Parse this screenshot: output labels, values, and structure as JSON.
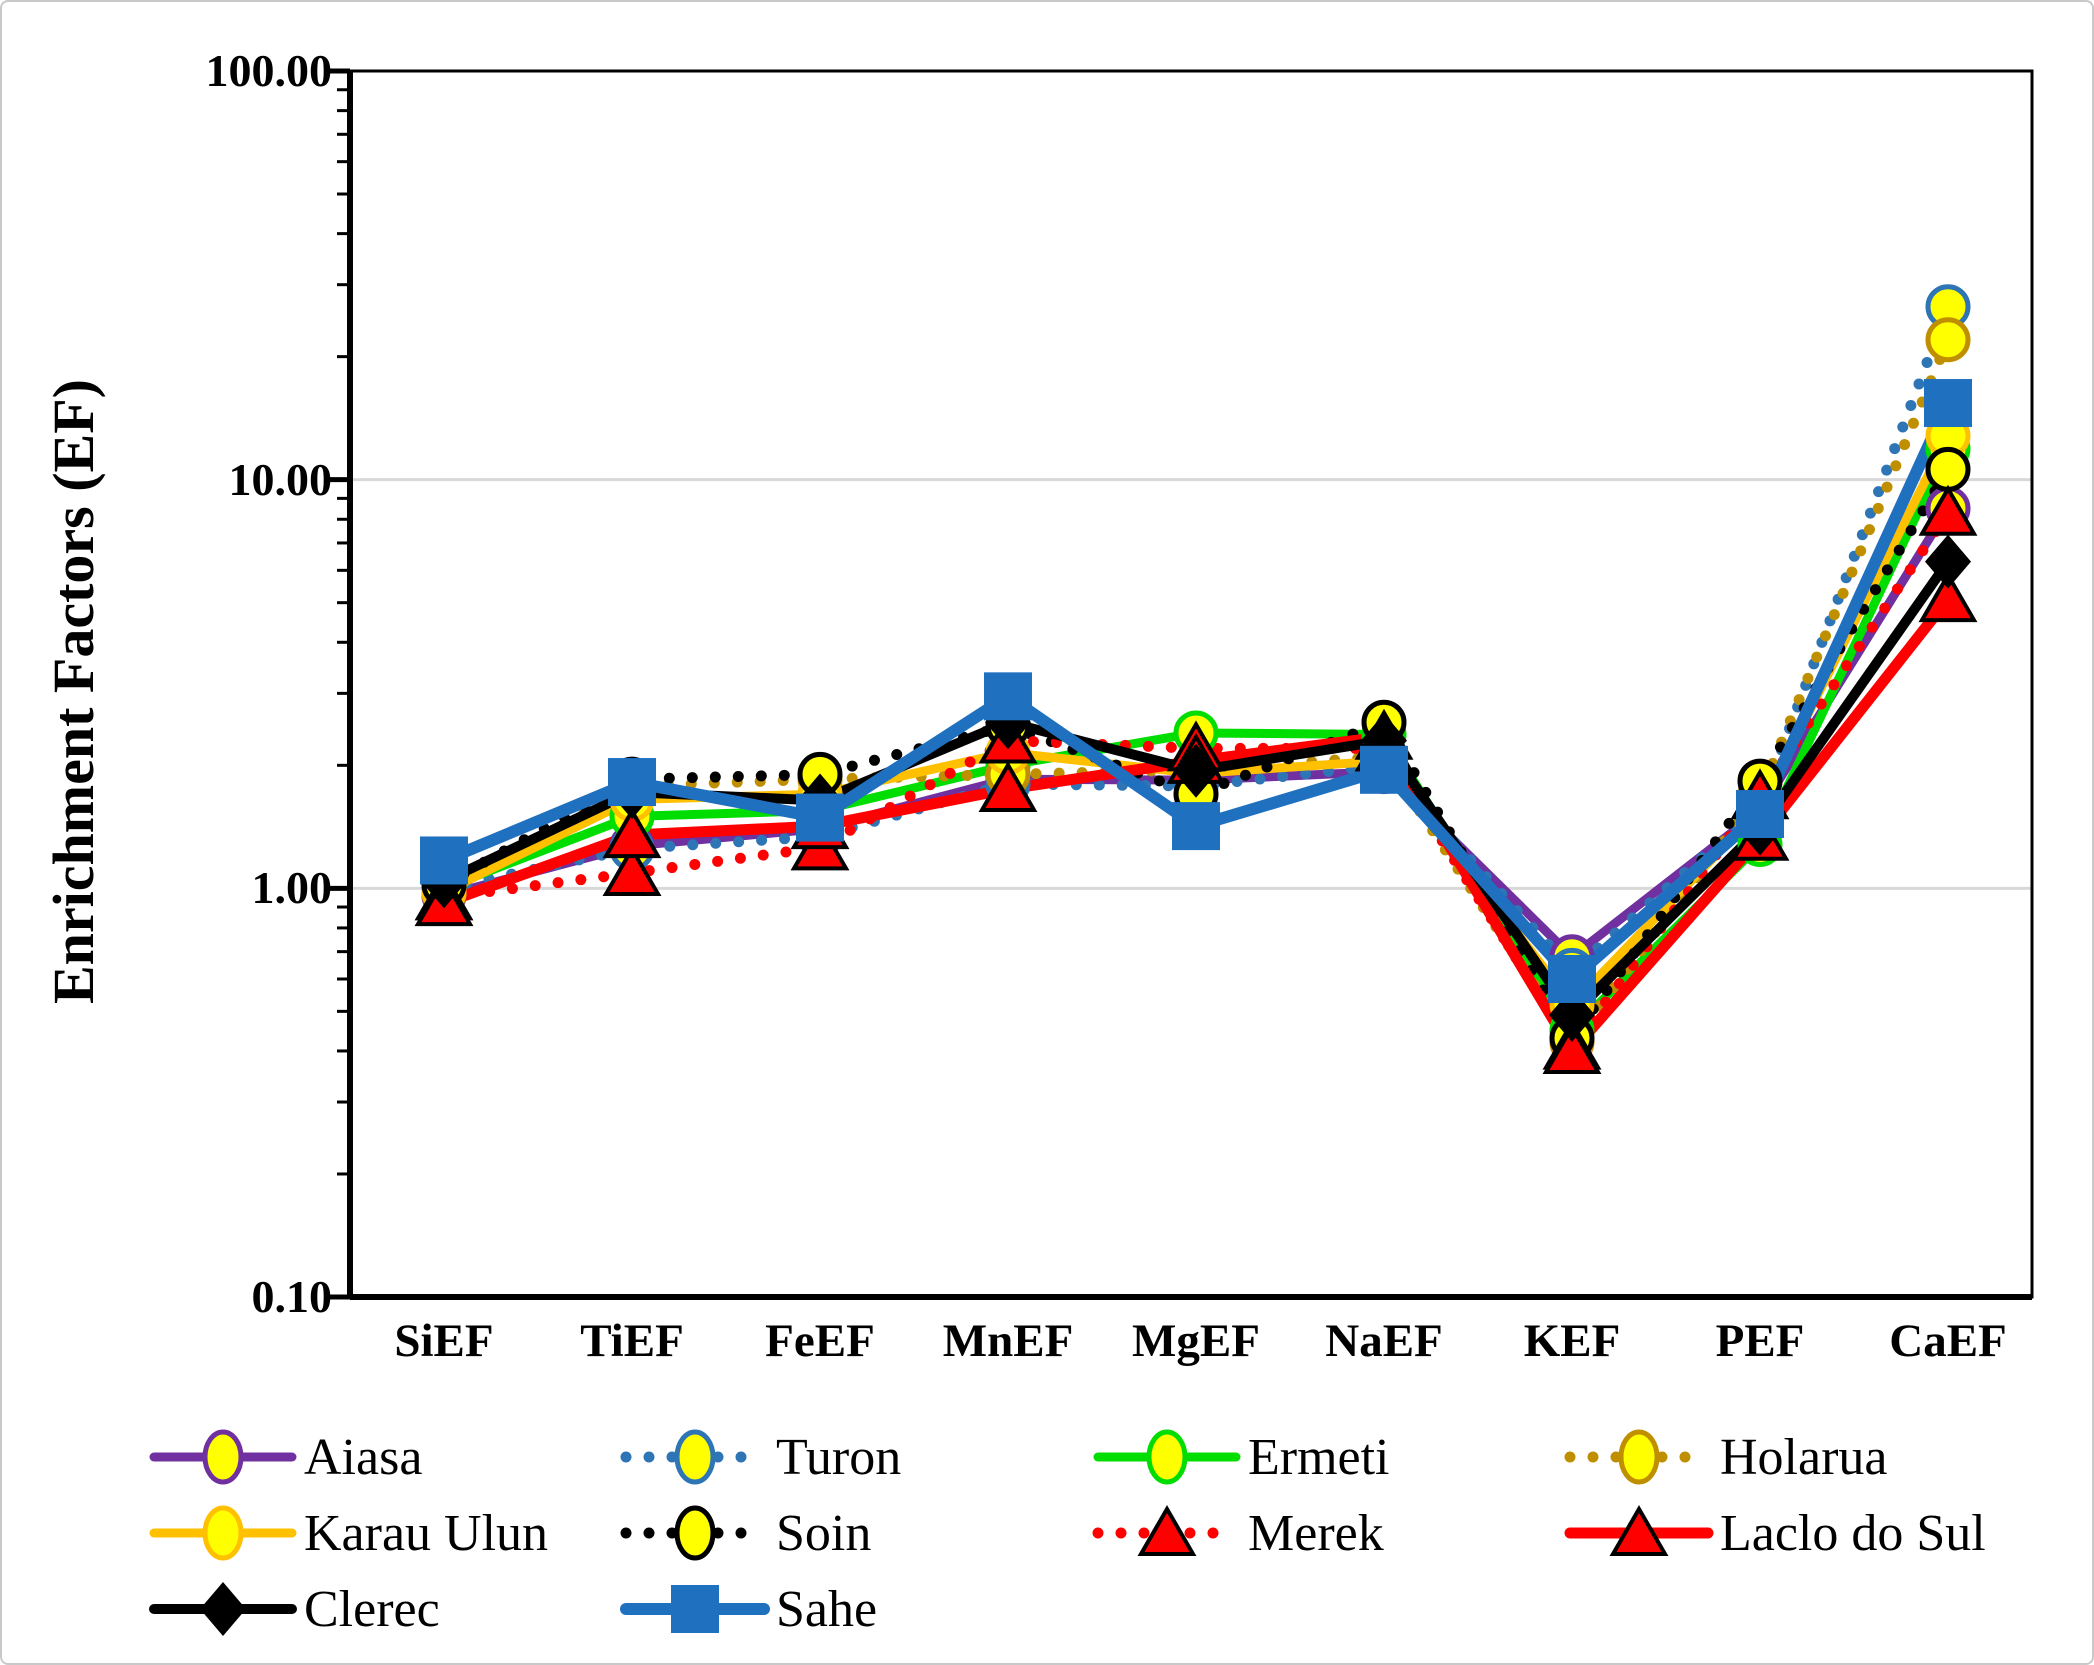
{
  "figure_title": "",
  "y_axis": {
    "title": "Enrichment Factors (EF)",
    "scale": "log",
    "min": 0.1,
    "max": 100,
    "tick_labels": [
      "100.00",
      "10.00",
      "1.00",
      "0.10"
    ],
    "gridlines_at": [
      10,
      1
    ]
  },
  "x_axis": {
    "categories": [
      "SiEF",
      "TiEF",
      "FeEF",
      "MnEF",
      "MgEF",
      "NaEF",
      "KEF",
      "PEF",
      "CaEF"
    ]
  },
  "chart_data": {
    "type": "line",
    "title": "",
    "xlabel": "",
    "ylabel": "Enrichment Factors (EF)",
    "y_scale": "log",
    "ylim": [
      0.1,
      100
    ],
    "y_ticks": [
      "100.00",
      "10.00",
      "1.00",
      "0.10"
    ],
    "grid": "horizontal gridlines at 1.00 and 10.00, light gray",
    "legend_position": "bottom",
    "categories": [
      "SiEF",
      "TiEF",
      "FeEF",
      "MnEF",
      "MgEF",
      "NaEF",
      "KEF",
      "PEF",
      "CaEF"
    ],
    "series": [
      {
        "name": "Aiasa",
        "color": "#7030A0",
        "line": "solid",
        "line_width": 9,
        "marker": "circle",
        "marker_fill": "#FFFF00",
        "values": [
          0.96,
          1.27,
          1.4,
          1.85,
          1.84,
          1.93,
          0.68,
          1.55,
          8.5
        ]
      },
      {
        "name": "Turon",
        "color": "#2E75B6",
        "line": "dotted",
        "line_width": 11,
        "marker": "circle",
        "marker_fill": "#FFFF00",
        "values": [
          1.0,
          1.25,
          1.34,
          1.8,
          1.78,
          2.0,
          0.63,
          1.58,
          26.5
        ]
      },
      {
        "name": "Ermeti",
        "color": "#00DD00",
        "line": "solid",
        "line_width": 9,
        "marker": "circle",
        "marker_fill": "#FFFF00",
        "values": [
          1.0,
          1.5,
          1.55,
          2.0,
          2.4,
          2.38,
          0.45,
          1.28,
          11.9
        ]
      },
      {
        "name": "Holarua",
        "color": "#BF8F00",
        "line": "dotted",
        "line_width": 11,
        "marker": "circle",
        "marker_fill": "#FFFF00",
        "values": [
          0.97,
          1.78,
          1.85,
          1.9,
          1.95,
          2.1,
          0.42,
          1.7,
          22.0
        ]
      },
      {
        "name": "Karau Ulun",
        "color": "#FFC000",
        "line": "solid",
        "line_width": 9,
        "marker": "circle",
        "marker_fill": "#FFFF00",
        "values": [
          0.98,
          1.65,
          1.7,
          2.15,
          1.91,
          2.05,
          0.52,
          1.56,
          12.8
        ]
      },
      {
        "name": "Soin",
        "color": "#000000",
        "line": "dotted",
        "line_width": 11,
        "marker": "circle",
        "marker_fill": "#FFFF00",
        "values": [
          1.02,
          1.85,
          1.9,
          2.5,
          1.7,
          2.55,
          0.43,
          1.83,
          10.6
        ]
      },
      {
        "name": "Merek",
        "color": "#FF0000",
        "line": "dotted",
        "line_width": 11,
        "marker": "triangle",
        "marker_fill": "#FF0000",
        "values": [
          0.95,
          1.09,
          1.26,
          2.3,
          2.2,
          2.2,
          0.41,
          1.68,
          8.3
        ]
      },
      {
        "name": "Laclo do Sul",
        "color": "#FF0000",
        "line": "solid",
        "line_width": 11,
        "marker": "triangle",
        "marker_fill": "#FF0000",
        "values": [
          0.92,
          1.35,
          1.42,
          1.75,
          2.05,
          2.35,
          0.4,
          1.33,
          5.1
        ]
      },
      {
        "name": "Clerec",
        "color": "#000000",
        "line": "solid",
        "line_width": 10,
        "marker": "diamond",
        "marker_fill": "#000000",
        "values": [
          1.04,
          1.72,
          1.64,
          2.55,
          1.94,
          2.3,
          0.49,
          1.4,
          6.3
        ]
      },
      {
        "name": "Sahe",
        "color": "#2070C0",
        "line": "solid",
        "line_width": 12,
        "marker": "square",
        "marker_fill": "#2070C0",
        "values": [
          1.17,
          1.82,
          1.49,
          2.95,
          1.42,
          1.95,
          0.6,
          1.52,
          15.4
        ]
      }
    ]
  },
  "colors": {
    "gridline": "#D8D8D8",
    "axis": "#000000",
    "background": "#FFFFFF",
    "figure_border": "#C9C9C9",
    "marker_yellow": "#FFFF00"
  }
}
